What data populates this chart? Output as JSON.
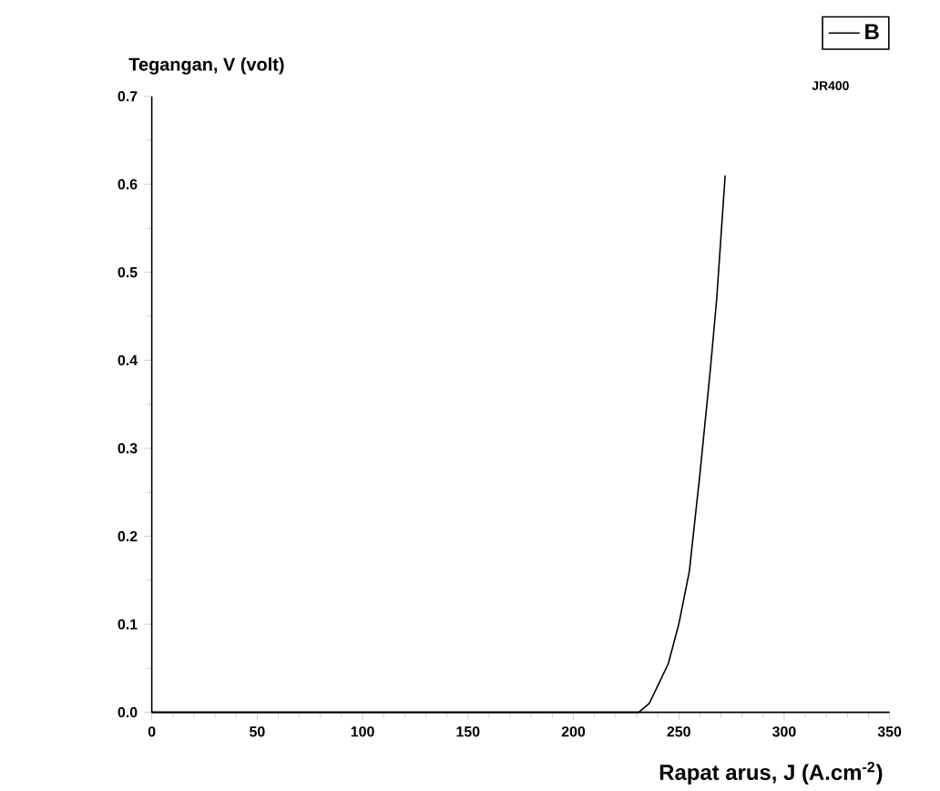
{
  "chart_data": {
    "type": "line",
    "xlabel": "Rapat arus, J (A.cm$^{-2}$)",
    "ylabel": "Tegangan, V (volt)",
    "annotations": [
      "JR400"
    ],
    "x": [
      0,
      50,
      100,
      150,
      200,
      225,
      231,
      236,
      240,
      245,
      250,
      255,
      260,
      265,
      268,
      272
    ],
    "series": [
      {
        "name": "B",
        "color": "#000000",
        "values": [
          0,
          0,
          0,
          0,
          0,
          0,
          0,
          0.01,
          0.03,
          0.055,
          0.1,
          0.16,
          0.27,
          0.39,
          0.47,
          0.61
        ]
      }
    ],
    "xlim": [
      0,
      350
    ],
    "xticks": [
      0,
      50,
      100,
      150,
      200,
      250,
      300,
      350
    ],
    "ylim": [
      0,
      0.7
    ],
    "yticks": [
      {
        "value": 0,
        "label": "0.0"
      },
      0.1,
      0.2,
      0.3,
      0.4,
      0.5,
      0.6,
      0.7
    ],
    "legend": "top right",
    "grid": false,
    "marker": "none",
    "line_style": "solid"
  }
}
